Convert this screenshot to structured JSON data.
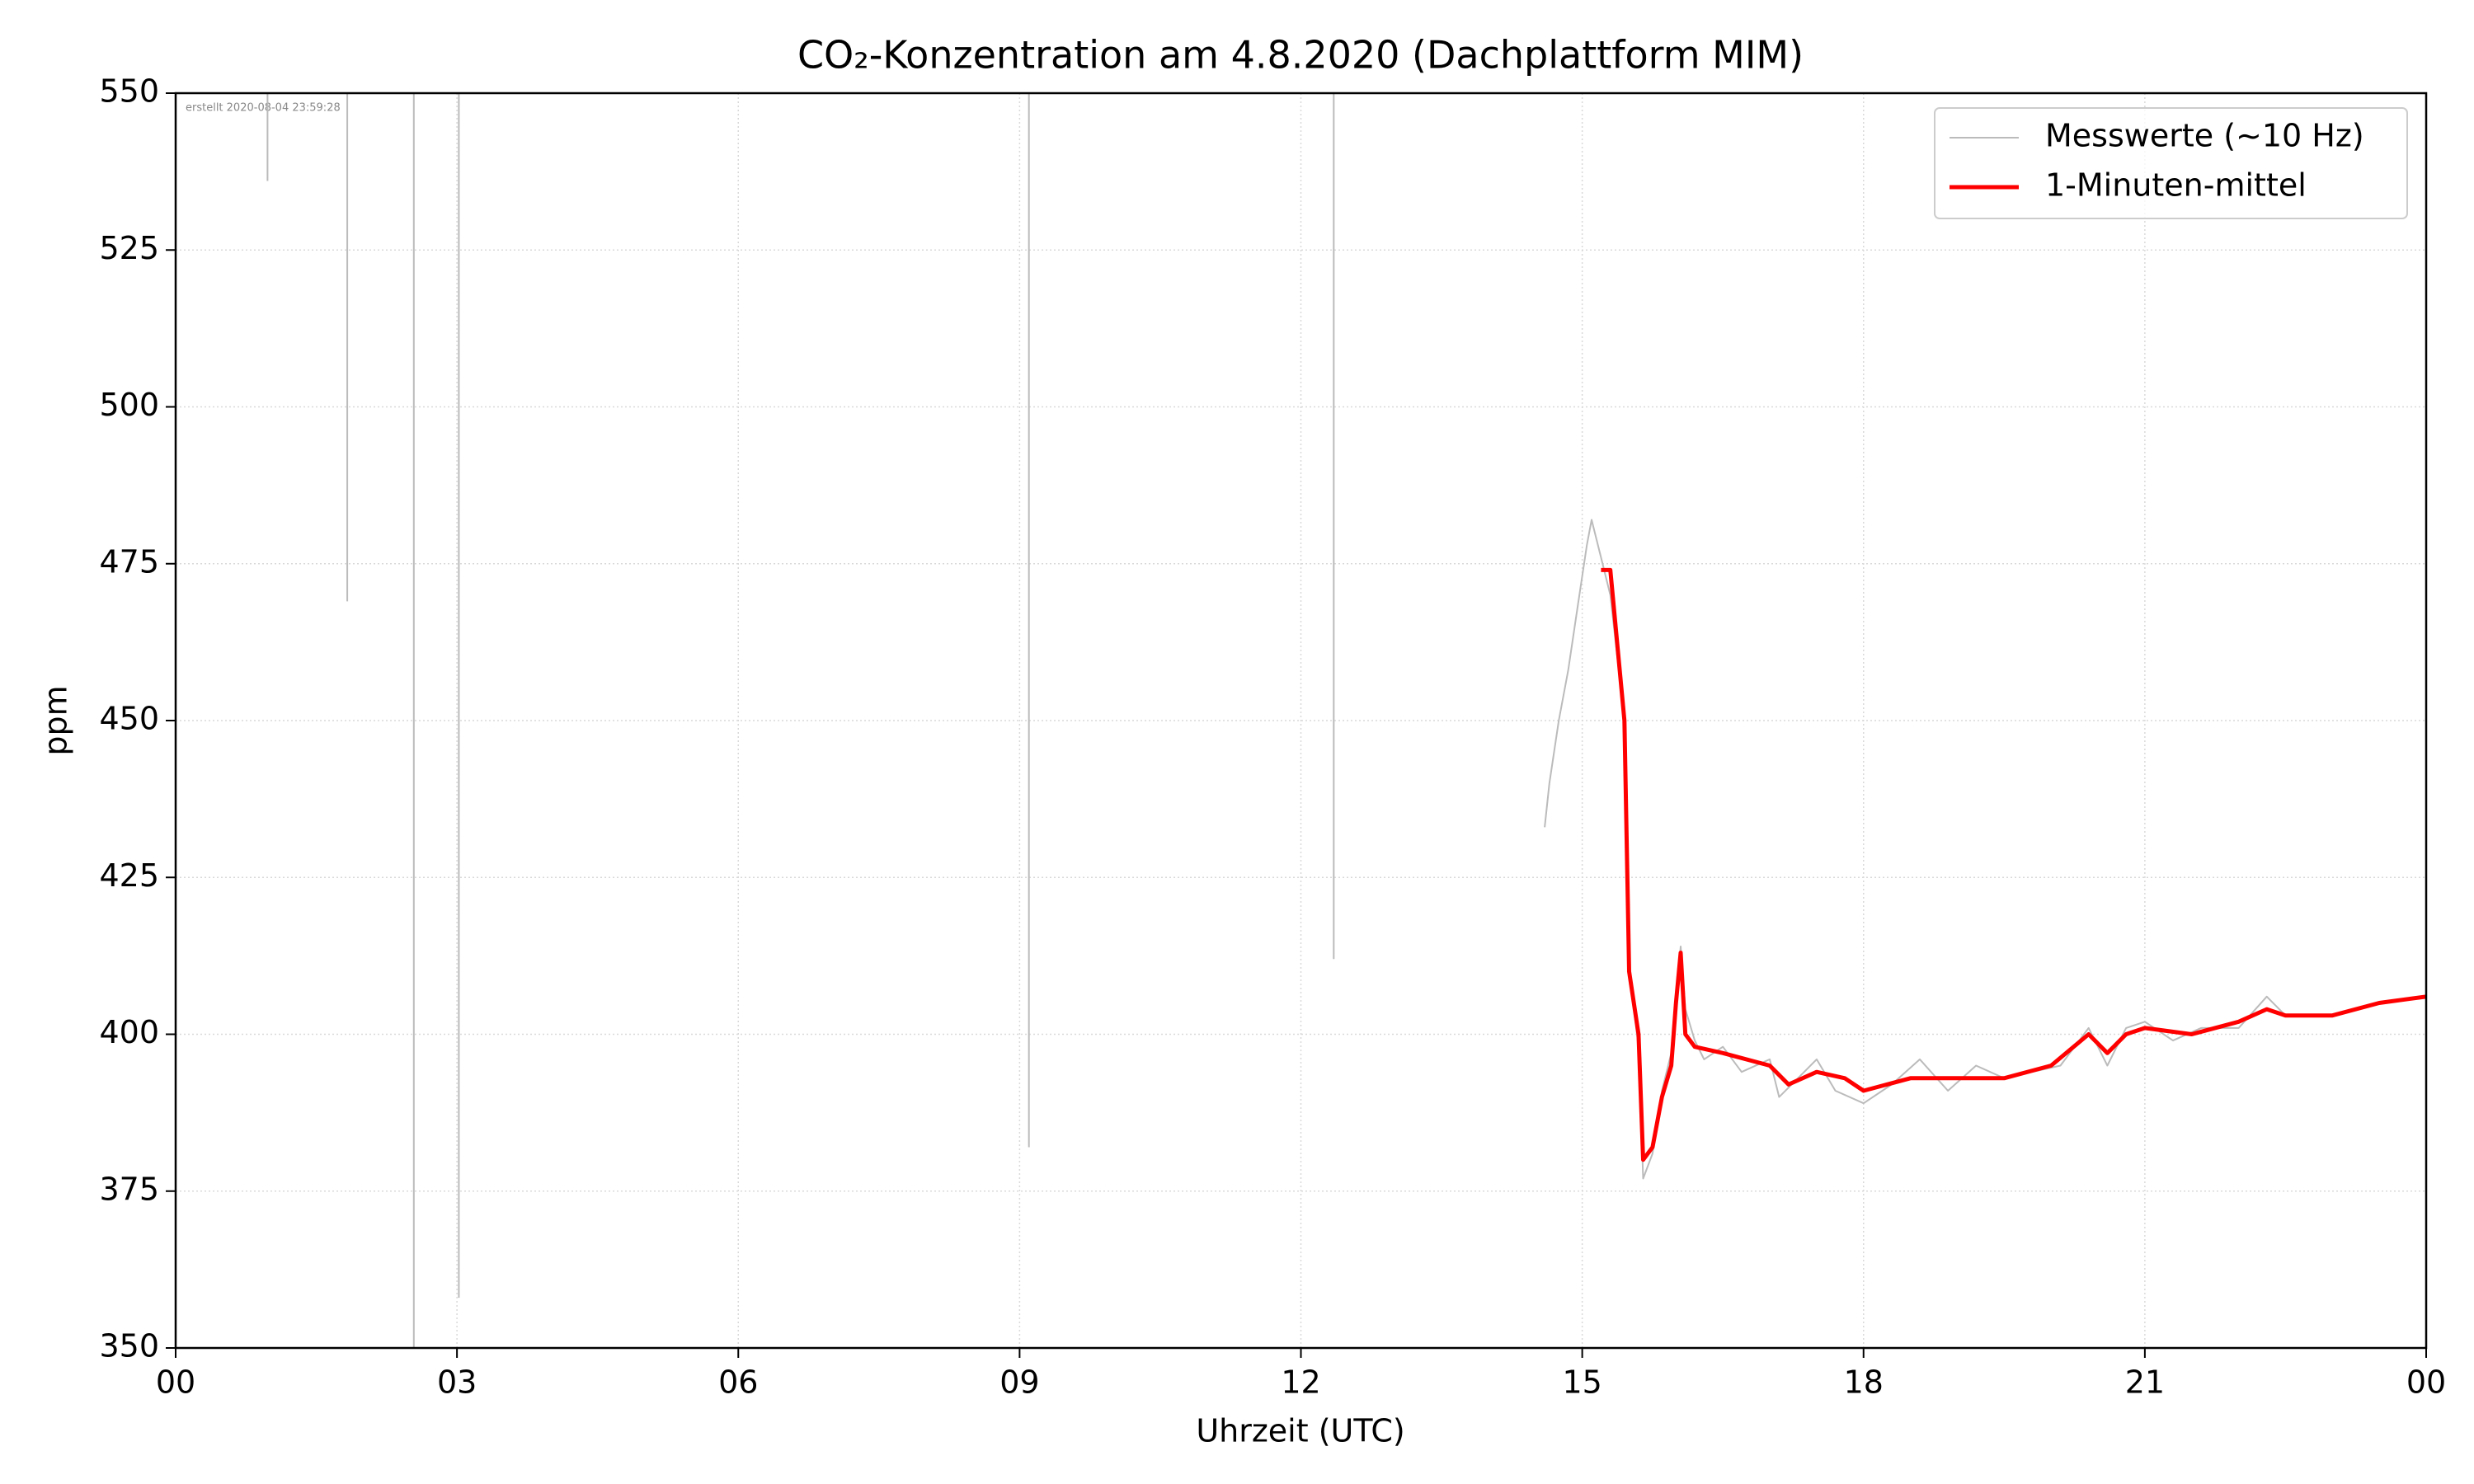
{
  "chart_data": {
    "type": "line",
    "title": "CO₂-Konzentration am 4.8.2020 (Dachplattform MIM)",
    "xlabel": "Uhrzeit (UTC)",
    "ylabel": "ppm",
    "annotation": "erstellt 2020-08-04 23:59:28",
    "xlim": [
      0,
      24
    ],
    "xticks": [
      {
        "value": 0,
        "label": "00"
      },
      {
        "value": 3,
        "label": "03"
      },
      {
        "value": 6,
        "label": "06"
      },
      {
        "value": 9,
        "label": "09"
      },
      {
        "value": 12,
        "label": "12"
      },
      15,
      18,
      21,
      {
        "value": 24,
        "label": "00"
      }
    ],
    "ylim": [
      350,
      550
    ],
    "yticks": [
      350,
      375,
      400,
      425,
      450,
      475,
      500,
      525,
      550
    ],
    "grid": true,
    "legend": "upper right",
    "series": [
      {
        "name": "Messwerte (~10 Hz)",
        "color": "#bbbbbb",
        "x": [
          0.98,
          0.98,
          null,
          1.83,
          1.83,
          null,
          2.54,
          2.54,
          null,
          3.02,
          3.02,
          null,
          9.1,
          9.1,
          null,
          12.35,
          12.35,
          null,
          14.6,
          14.65,
          14.75,
          14.85,
          14.95,
          15.05,
          15.1,
          15.2,
          15.3,
          15.45,
          15.5,
          15.6,
          15.65,
          15.75,
          15.85,
          15.95,
          16.05,
          16.1,
          16.2,
          16.3,
          16.5,
          16.7,
          17,
          17.1,
          17.3,
          17.5,
          17.7,
          18,
          18.3,
          18.6,
          18.9,
          19.2,
          19.5,
          19.8,
          20.1,
          20.4,
          20.6,
          20.8,
          21,
          21.3,
          21.6,
          22,
          22.3,
          22.5,
          23,
          23.5,
          24
        ],
        "values": [
          550,
          536,
          null,
          550,
          469,
          null,
          550,
          350,
          null,
          550,
          358,
          null,
          550,
          382,
          null,
          550,
          412,
          null,
          433,
          440,
          450,
          458,
          468,
          478,
          482,
          476,
          470,
          450,
          410,
          398,
          377,
          381,
          391,
          397,
          414,
          404,
          399,
          396,
          398,
          394,
          396,
          390,
          393,
          396,
          391,
          389,
          392,
          396,
          391,
          395,
          393,
          394,
          395,
          401,
          395,
          401,
          402,
          399,
          401,
          401,
          406,
          403,
          403,
          405,
          406
        ]
      },
      {
        "name": "1-Minuten-mittel",
        "color": "#ff0000",
        "x": [
          15.2,
          15.3,
          15.45,
          15.5,
          15.6,
          15.65,
          15.75,
          15.85,
          15.95,
          16.0,
          16.05,
          16.1,
          16.2,
          16.5,
          17,
          17.2,
          17.5,
          17.8,
          18,
          18.5,
          19,
          19.5,
          20,
          20.4,
          20.6,
          20.8,
          21,
          21.5,
          22,
          22.3,
          22.5,
          23,
          23.5,
          24
        ],
        "values": [
          474,
          474,
          450,
          410,
          400,
          380,
          382,
          390,
          395,
          405,
          413,
          400,
          398,
          397,
          395,
          392,
          394,
          393,
          391,
          393,
          393,
          393,
          395,
          400,
          397,
          400,
          401,
          400,
          402,
          404,
          403,
          403,
          405,
          406
        ]
      }
    ]
  }
}
